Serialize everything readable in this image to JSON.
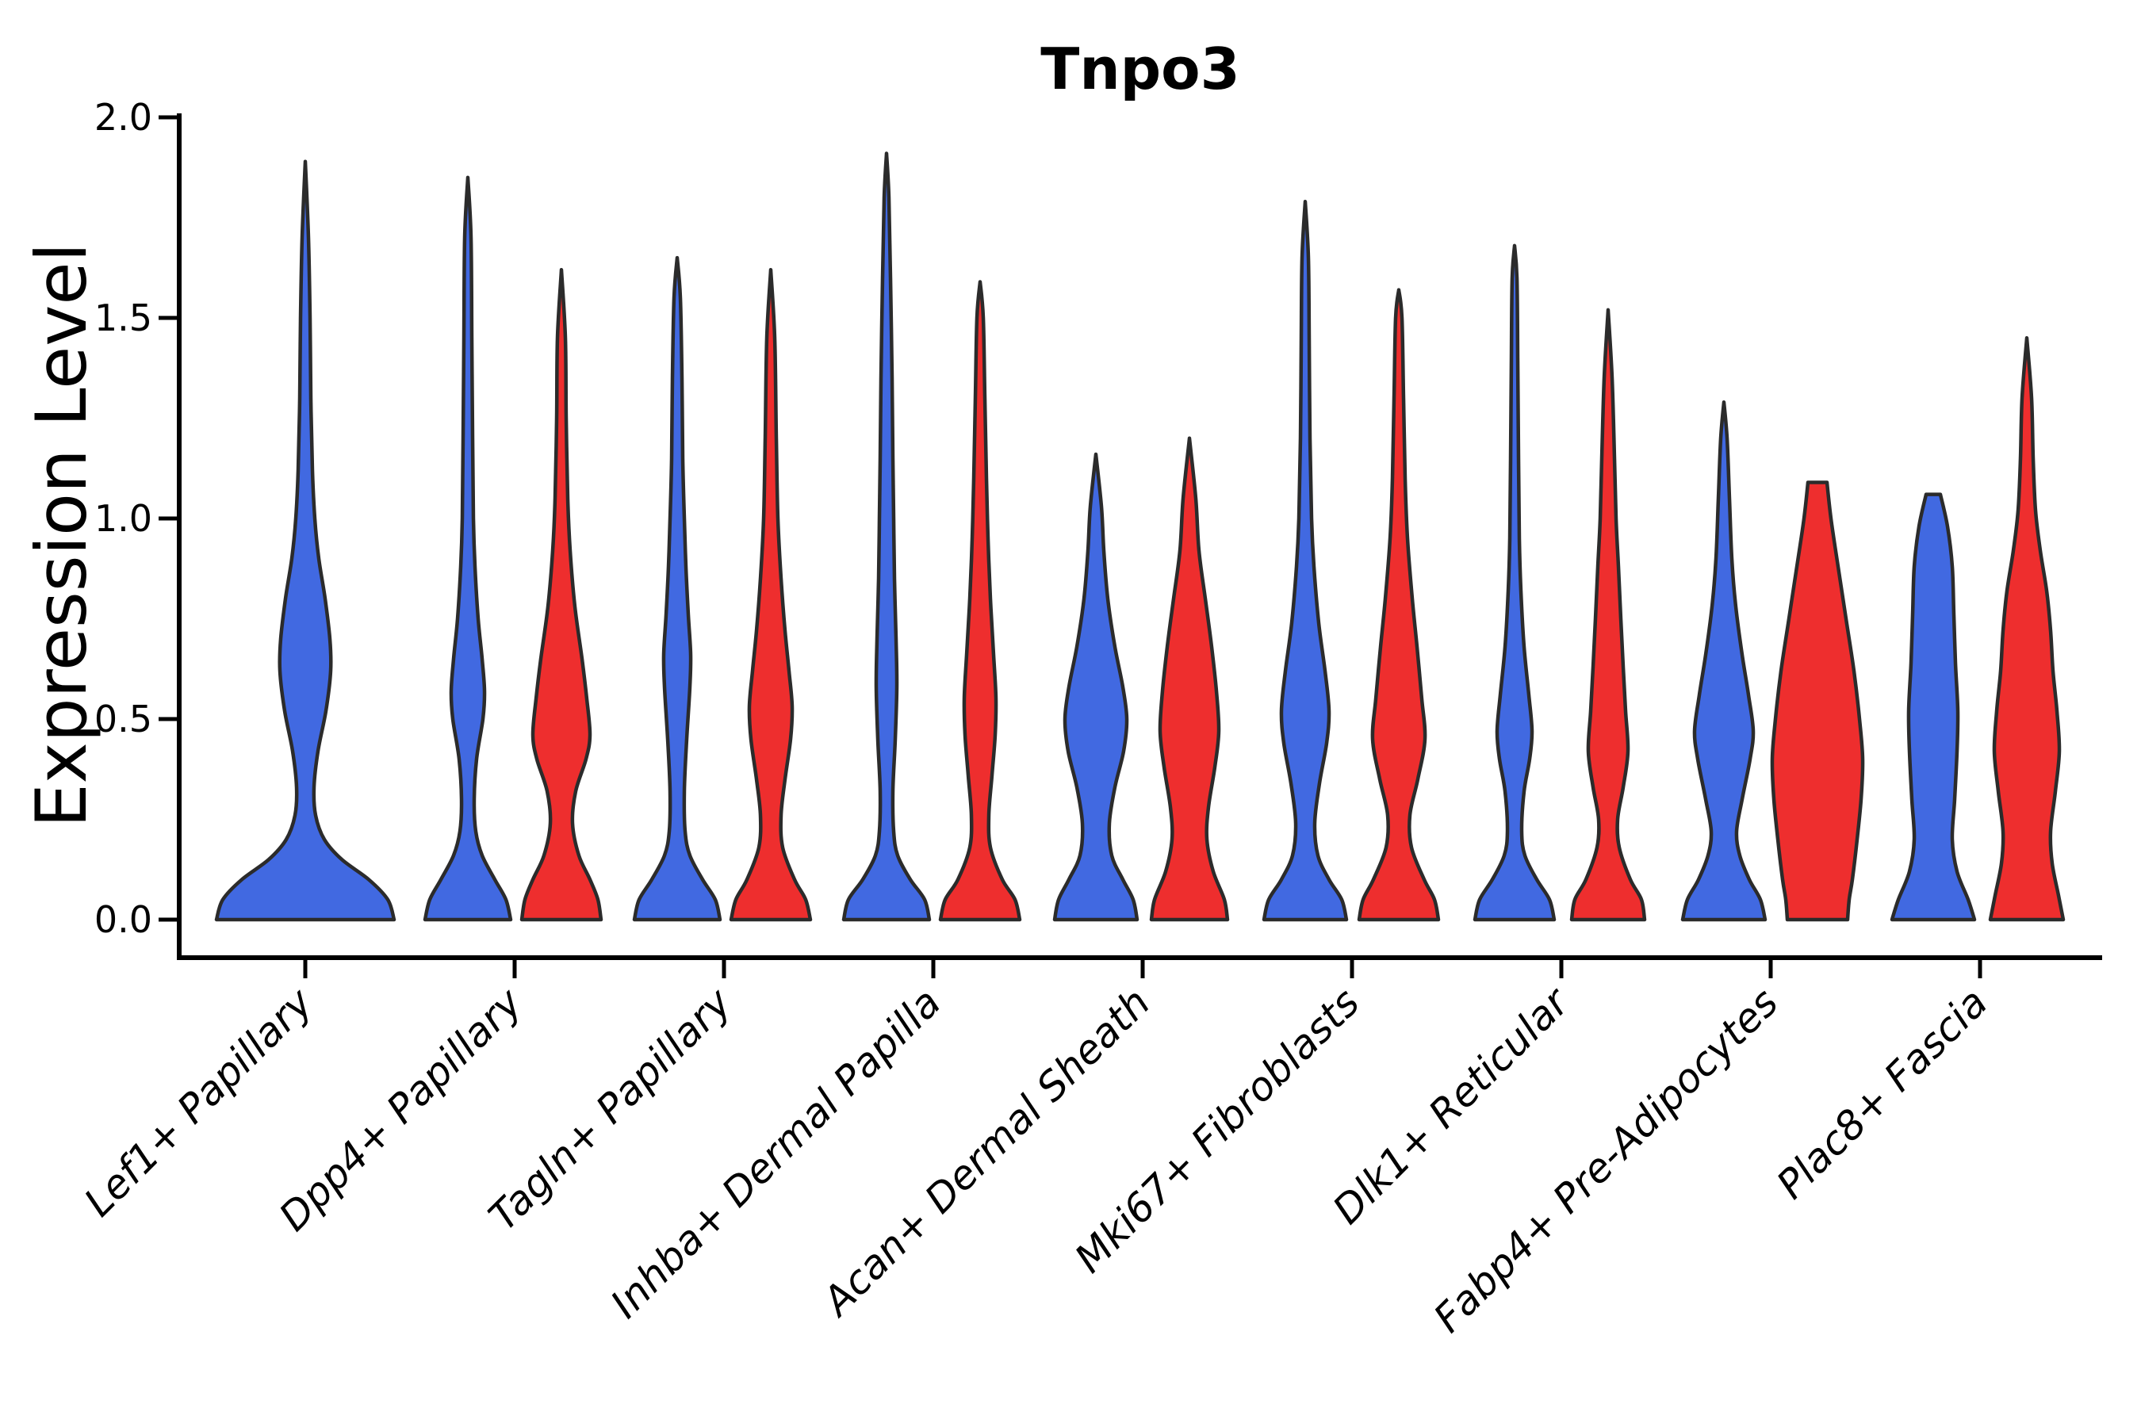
{
  "figure": {
    "title": "Tnpo3",
    "ylabel": "Expression Level"
  },
  "colors": {
    "blue": "#4169E1",
    "red": "#EE2E2E",
    "outline": "#2B2B2B",
    "axis": "#000000"
  },
  "chart_data": {
    "type": "violin",
    "title": "Tnpo3",
    "xlabel": "",
    "ylabel": "Expression Level",
    "ylim": [
      -0.1,
      2.01
    ],
    "yticks": [
      2.0,
      1.5,
      1.0,
      0.5,
      0.0
    ],
    "ytick_labels": [
      "2.0",
      "1.5",
      "1.0",
      "0.5",
      "0.0"
    ],
    "grid": false,
    "legend": "none",
    "categories": [
      "Lef1+ Papillary",
      "Dpp4+ Papillary",
      "Tagln+ Papillary",
      "Inhba+ Dermal Papilla",
      "Acan+ Dermal Sheath",
      "Mki67+ Fibroblasts",
      "Dlk1+ Reticular",
      "Fabp4+ Pre-Adipocytes",
      "Plac8+ Fascia"
    ],
    "series": [
      {
        "name": "blue-split",
        "color": "#4169E1",
        "max_values": [
          1.89,
          1.85,
          1.65,
          1.91,
          1.16,
          1.79,
          1.68,
          1.29,
          1.06
        ]
      },
      {
        "name": "red-split",
        "color": "#EE2E2E",
        "max_values": [
          null,
          1.62,
          1.62,
          1.59,
          1.2,
          1.57,
          1.52,
          1.09,
          1.45
        ]
      }
    ],
    "violins": [
      {
        "category": "Lef1+ Papillary",
        "split": "blue",
        "single": true,
        "max": 1.89,
        "profile": [
          [
            0,
            112
          ],
          [
            0.05,
            104
          ],
          [
            0.1,
            80
          ],
          [
            0.15,
            46
          ],
          [
            0.2,
            24
          ],
          [
            0.26,
            13
          ],
          [
            0.33,
            11
          ],
          [
            0.42,
            16
          ],
          [
            0.52,
            26
          ],
          [
            0.62,
            32
          ],
          [
            0.7,
            31
          ],
          [
            0.8,
            25
          ],
          [
            0.9,
            17
          ],
          [
            1.0,
            12
          ],
          [
            1.12,
            9
          ],
          [
            1.3,
            7
          ],
          [
            1.5,
            6
          ],
          [
            1.7,
            4
          ],
          [
            1.89,
            0
          ]
        ]
      },
      {
        "category": "Dpp4+ Papillary",
        "split": "blue",
        "single": false,
        "max": 1.85,
        "profile": [
          [
            0,
            54
          ],
          [
            0.05,
            48
          ],
          [
            0.1,
            34
          ],
          [
            0.16,
            18
          ],
          [
            0.22,
            10
          ],
          [
            0.3,
            8
          ],
          [
            0.4,
            11
          ],
          [
            0.5,
            19
          ],
          [
            0.57,
            21
          ],
          [
            0.65,
            18
          ],
          [
            0.75,
            13
          ],
          [
            0.88,
            9
          ],
          [
            1.0,
            7
          ],
          [
            1.2,
            6
          ],
          [
            1.45,
            5
          ],
          [
            1.7,
            4
          ],
          [
            1.85,
            0
          ]
        ]
      },
      {
        "category": "Dpp4+ Papillary",
        "split": "red",
        "single": false,
        "max": 1.62,
        "profile": [
          [
            0,
            50
          ],
          [
            0.05,
            46
          ],
          [
            0.1,
            36
          ],
          [
            0.16,
            22
          ],
          [
            0.24,
            14
          ],
          [
            0.32,
            18
          ],
          [
            0.4,
            31
          ],
          [
            0.46,
            36
          ],
          [
            0.55,
            32
          ],
          [
            0.65,
            26
          ],
          [
            0.78,
            17
          ],
          [
            0.92,
            11
          ],
          [
            1.05,
            8
          ],
          [
            1.25,
            6
          ],
          [
            1.45,
            5
          ],
          [
            1.62,
            0
          ]
        ]
      },
      {
        "category": "Tagln+ Papillary",
        "split": "blue",
        "single": false,
        "max": 1.65,
        "profile": [
          [
            0,
            54
          ],
          [
            0.05,
            48
          ],
          [
            0.1,
            32
          ],
          [
            0.16,
            16
          ],
          [
            0.22,
            10
          ],
          [
            0.32,
            9
          ],
          [
            0.45,
            12
          ],
          [
            0.58,
            16
          ],
          [
            0.66,
            17
          ],
          [
            0.76,
            14
          ],
          [
            0.88,
            11
          ],
          [
            1.0,
            9
          ],
          [
            1.15,
            7
          ],
          [
            1.35,
            6
          ],
          [
            1.55,
            4
          ],
          [
            1.65,
            0
          ]
        ]
      },
      {
        "category": "Tagln+ Papillary",
        "split": "red",
        "single": false,
        "max": 1.62,
        "profile": [
          [
            0,
            50
          ],
          [
            0.05,
            44
          ],
          [
            0.1,
            30
          ],
          [
            0.18,
            15
          ],
          [
            0.26,
            13
          ],
          [
            0.35,
            18
          ],
          [
            0.45,
            25
          ],
          [
            0.53,
            27
          ],
          [
            0.62,
            23
          ],
          [
            0.72,
            18
          ],
          [
            0.85,
            13
          ],
          [
            1.0,
            9
          ],
          [
            1.2,
            7
          ],
          [
            1.45,
            5
          ],
          [
            1.62,
            0
          ]
        ]
      },
      {
        "category": "Inhba+ Dermal Papilla",
        "split": "blue",
        "single": false,
        "max": 1.91,
        "profile": [
          [
            0,
            54
          ],
          [
            0.05,
            48
          ],
          [
            0.1,
            30
          ],
          [
            0.16,
            14
          ],
          [
            0.22,
            9
          ],
          [
            0.32,
            8
          ],
          [
            0.45,
            11
          ],
          [
            0.58,
            13
          ],
          [
            0.7,
            12
          ],
          [
            0.85,
            10
          ],
          [
            1.0,
            9
          ],
          [
            1.15,
            8
          ],
          [
            1.35,
            7
          ],
          [
            1.6,
            5
          ],
          [
            1.8,
            3
          ],
          [
            1.91,
            0
          ]
        ]
      },
      {
        "category": "Inhba+ Dermal Papilla",
        "split": "red",
        "single": false,
        "max": 1.59,
        "profile": [
          [
            0,
            50
          ],
          [
            0.05,
            44
          ],
          [
            0.1,
            28
          ],
          [
            0.18,
            13
          ],
          [
            0.26,
            11
          ],
          [
            0.36,
            15
          ],
          [
            0.46,
            19
          ],
          [
            0.55,
            20
          ],
          [
            0.66,
            17
          ],
          [
            0.8,
            13
          ],
          [
            0.95,
            10
          ],
          [
            1.1,
            8
          ],
          [
            1.3,
            6
          ],
          [
            1.5,
            4
          ],
          [
            1.59,
            0
          ]
        ]
      },
      {
        "category": "Acan+ Dermal Sheath",
        "split": "blue",
        "single": false,
        "max": 1.16,
        "profile": [
          [
            0,
            52
          ],
          [
            0.05,
            47
          ],
          [
            0.1,
            34
          ],
          [
            0.16,
            20
          ],
          [
            0.24,
            17
          ],
          [
            0.33,
            24
          ],
          [
            0.42,
            35
          ],
          [
            0.5,
            39
          ],
          [
            0.58,
            34
          ],
          [
            0.68,
            24
          ],
          [
            0.8,
            15
          ],
          [
            0.92,
            10
          ],
          [
            1.03,
            7
          ],
          [
            1.16,
            0
          ]
        ]
      },
      {
        "category": "Acan+ Dermal Sheath",
        "split": "red",
        "single": false,
        "max": 1.2,
        "profile": [
          [
            0,
            48
          ],
          [
            0.05,
            44
          ],
          [
            0.12,
            30
          ],
          [
            0.2,
            22
          ],
          [
            0.28,
            24
          ],
          [
            0.38,
            32
          ],
          [
            0.47,
            37
          ],
          [
            0.57,
            34
          ],
          [
            0.68,
            28
          ],
          [
            0.8,
            20
          ],
          [
            0.92,
            12
          ],
          [
            1.05,
            8
          ],
          [
            1.2,
            0
          ]
        ]
      },
      {
        "category": "Mki67+ Fibroblasts",
        "split": "blue",
        "single": false,
        "max": 1.79,
        "profile": [
          [
            0,
            52
          ],
          [
            0.05,
            46
          ],
          [
            0.1,
            30
          ],
          [
            0.16,
            16
          ],
          [
            0.24,
            12
          ],
          [
            0.34,
            18
          ],
          [
            0.44,
            27
          ],
          [
            0.52,
            30
          ],
          [
            0.62,
            25
          ],
          [
            0.74,
            17
          ],
          [
            0.88,
            11
          ],
          [
            1.0,
            8
          ],
          [
            1.2,
            6
          ],
          [
            1.45,
            5
          ],
          [
            1.65,
            4
          ],
          [
            1.79,
            0
          ]
        ]
      },
      {
        "category": "Mki67+ Fibroblasts",
        "split": "red",
        "single": false,
        "max": 1.57,
        "profile": [
          [
            0,
            50
          ],
          [
            0.05,
            45
          ],
          [
            0.1,
            32
          ],
          [
            0.18,
            16
          ],
          [
            0.26,
            14
          ],
          [
            0.35,
            24
          ],
          [
            0.45,
            33
          ],
          [
            0.55,
            29
          ],
          [
            0.68,
            23
          ],
          [
            0.8,
            17
          ],
          [
            0.95,
            11
          ],
          [
            1.1,
            8
          ],
          [
            1.3,
            6
          ],
          [
            1.5,
            4
          ],
          [
            1.57,
            0
          ]
        ]
      },
      {
        "category": "Dlk1+ Reticular",
        "split": "blue",
        "single": false,
        "max": 1.68,
        "profile": [
          [
            0,
            50
          ],
          [
            0.05,
            44
          ],
          [
            0.1,
            28
          ],
          [
            0.16,
            13
          ],
          [
            0.22,
            9
          ],
          [
            0.32,
            12
          ],
          [
            0.4,
            19
          ],
          [
            0.47,
            22
          ],
          [
            0.56,
            18
          ],
          [
            0.68,
            12
          ],
          [
            0.82,
            8
          ],
          [
            0.95,
            6
          ],
          [
            1.15,
            5
          ],
          [
            1.4,
            4
          ],
          [
            1.6,
            3
          ],
          [
            1.68,
            0
          ]
        ]
      },
      {
        "category": "Dlk1+ Reticular",
        "split": "red",
        "single": false,
        "max": 1.52,
        "profile": [
          [
            0,
            46
          ],
          [
            0.05,
            42
          ],
          [
            0.1,
            28
          ],
          [
            0.18,
            14
          ],
          [
            0.25,
            12
          ],
          [
            0.33,
            19
          ],
          [
            0.42,
            25
          ],
          [
            0.52,
            22
          ],
          [
            0.63,
            19
          ],
          [
            0.75,
            16
          ],
          [
            0.88,
            13
          ],
          [
            1.0,
            10
          ],
          [
            1.15,
            8
          ],
          [
            1.35,
            5
          ],
          [
            1.52,
            0
          ]
        ]
      },
      {
        "category": "Fabp4+ Pre-Adipocytes",
        "split": "blue",
        "single": false,
        "max": 1.29,
        "profile": [
          [
            0,
            52
          ],
          [
            0.05,
            46
          ],
          [
            0.1,
            32
          ],
          [
            0.16,
            20
          ],
          [
            0.22,
            16
          ],
          [
            0.3,
            23
          ],
          [
            0.4,
            33
          ],
          [
            0.47,
            37
          ],
          [
            0.56,
            31
          ],
          [
            0.66,
            23
          ],
          [
            0.78,
            15
          ],
          [
            0.9,
            10
          ],
          [
            1.05,
            7
          ],
          [
            1.2,
            4
          ],
          [
            1.29,
            0
          ]
        ]
      },
      {
        "category": "Fabp4+ Pre-Adipocytes",
        "split": "red",
        "single": false,
        "max": 1.09,
        "profile": [
          [
            0,
            38
          ],
          [
            0.05,
            40
          ],
          [
            0.1,
            44
          ],
          [
            0.2,
            50
          ],
          [
            0.3,
            55
          ],
          [
            0.4,
            57
          ],
          [
            0.5,
            53
          ],
          [
            0.62,
            46
          ],
          [
            0.75,
            36
          ],
          [
            0.88,
            26
          ],
          [
            1.0,
            17
          ],
          [
            1.09,
            12
          ]
        ]
      },
      {
        "category": "Plac8+ Fascia",
        "split": "blue",
        "single": false,
        "max": 1.06,
        "profile": [
          [
            0,
            52
          ],
          [
            0.05,
            44
          ],
          [
            0.12,
            30
          ],
          [
            0.2,
            24
          ],
          [
            0.3,
            27
          ],
          [
            0.42,
            30
          ],
          [
            0.52,
            31
          ],
          [
            0.64,
            28
          ],
          [
            0.76,
            26
          ],
          [
            0.88,
            24
          ],
          [
            0.98,
            18
          ],
          [
            1.06,
            9
          ]
        ]
      },
      {
        "category": "Plac8+ Fascia",
        "split": "red",
        "single": false,
        "max": 1.45,
        "profile": [
          [
            0,
            46
          ],
          [
            0.06,
            40
          ],
          [
            0.14,
            32
          ],
          [
            0.22,
            30
          ],
          [
            0.32,
            36
          ],
          [
            0.42,
            41
          ],
          [
            0.52,
            38
          ],
          [
            0.62,
            33
          ],
          [
            0.72,
            30
          ],
          [
            0.82,
            25
          ],
          [
            0.92,
            17
          ],
          [
            1.02,
            11
          ],
          [
            1.15,
            8
          ],
          [
            1.3,
            6
          ],
          [
            1.45,
            0
          ]
        ]
      }
    ]
  }
}
